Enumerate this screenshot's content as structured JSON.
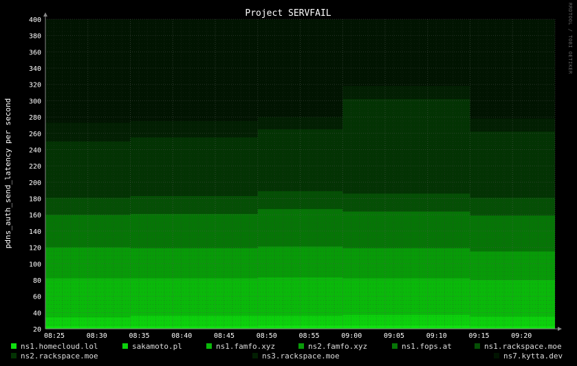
{
  "watermark": "RRDTOOL / TOBI OETIKER",
  "chart_data": {
    "type": "area",
    "title": "Project SERVFAIL",
    "ylabel": "pdns_auth_send_latency per second",
    "xlabel": "",
    "ylim": [
      20,
      400
    ],
    "yticks": [
      20,
      40,
      60,
      80,
      100,
      120,
      140,
      160,
      180,
      200,
      220,
      240,
      260,
      280,
      300,
      320,
      340,
      360,
      380,
      400
    ],
    "x": [
      "08:25",
      "08:30",
      "08:35",
      "08:40",
      "08:45",
      "08:50",
      "08:55",
      "09:00",
      "09:05",
      "09:10",
      "09:15",
      "09:20"
    ],
    "stacked": true,
    "grid": true,
    "series": [
      {
        "name": "ns1.homecloud.lol",
        "color": "#10e010",
        "values": [
          23,
          23,
          23,
          23,
          23,
          24,
          24,
          24,
          24,
          24,
          23,
          23
        ]
      },
      {
        "name": "sakamoto.pl",
        "color": "#0cd00c",
        "values": [
          34,
          34,
          36,
          36,
          36,
          36,
          36,
          37,
          37,
          37,
          35,
          35
        ]
      },
      {
        "name": "ns1.famfo.xyz",
        "color": "#0ab80a",
        "values": [
          82,
          82,
          82,
          82,
          82,
          83,
          83,
          82,
          82,
          82,
          80,
          80
        ]
      },
      {
        "name": "ns2.famfo.xyz",
        "color": "#089a08",
        "values": [
          120,
          120,
          119,
          119,
          119,
          121,
          121,
          119,
          119,
          119,
          115,
          115
        ]
      },
      {
        "name": "ns1.fops.at",
        "color": "#067506",
        "values": [
          160,
          160,
          161,
          161,
          161,
          167,
          167,
          164,
          164,
          164,
          159,
          159
        ]
      },
      {
        "name": "ns1.rackspace.moe",
        "color": "#054f05",
        "values": [
          181,
          181,
          183,
          183,
          183,
          189,
          189,
          186,
          186,
          186,
          181,
          181
        ]
      },
      {
        "name": "ns2.rackspace.moe",
        "color": "#033303",
        "values": [
          250,
          250,
          255,
          255,
          255,
          265,
          265,
          302,
          302,
          302,
          262,
          262
        ]
      },
      {
        "name": "ns3.rackspace.moe",
        "color": "#021f02",
        "values": [
          273,
          273,
          275,
          275,
          275,
          280,
          280,
          318,
          318,
          318,
          278,
          278
        ]
      },
      {
        "name": "ns7.kytta.dev",
        "color": "#011401",
        "values": [
          400,
          400,
          400,
          400,
          400,
          400,
          400,
          400,
          400,
          400,
          400,
          400
        ]
      }
    ]
  }
}
